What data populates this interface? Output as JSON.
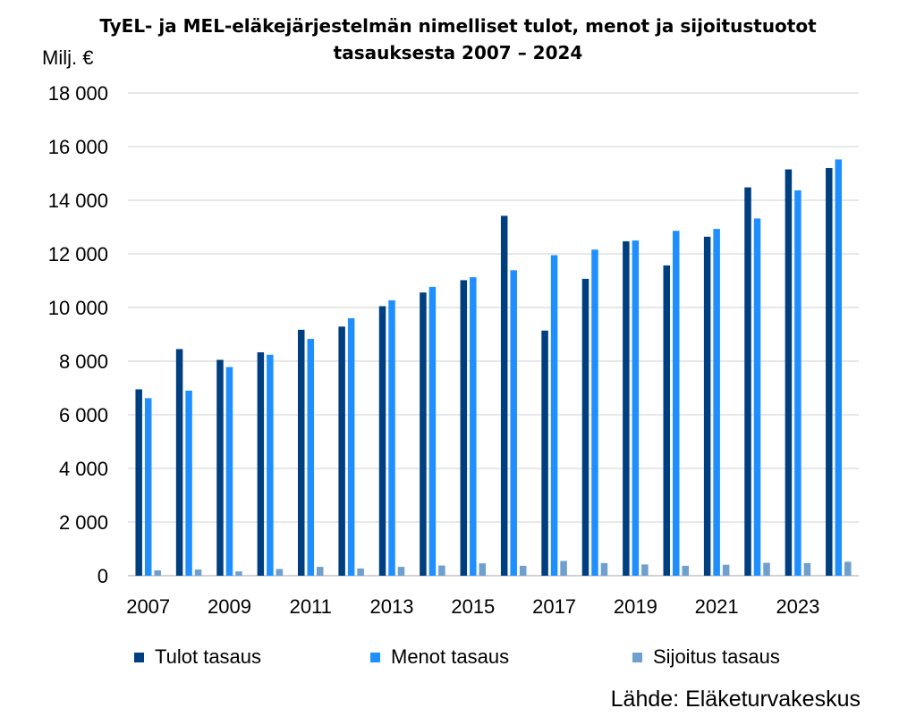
{
  "chart_data": {
    "type": "bar",
    "title": "TyEL- ja MEL-eläkejärjestelmän nimelliset tulot, menot ja sijoitustuotot",
    "subtitle": "tasauksesta 2007 – 2024",
    "ylabel": "Milj. €",
    "xlabel": "",
    "ylim": [
      0,
      18000
    ],
    "yticks": [
      "0",
      "2 000",
      "4 000",
      "6 000",
      "8 000",
      "10 000",
      "12 000",
      "14 000",
      "16 000",
      "18 000"
    ],
    "grid": true,
    "legend_position": "bottom",
    "categories": [
      "2007",
      "2008",
      "2009",
      "2010",
      "2011",
      "2012",
      "2013",
      "2014",
      "2015",
      "2016",
      "2017",
      "2018",
      "2019",
      "2020",
      "2021",
      "2022",
      "2023",
      "2024"
    ],
    "xtick_labels": [
      "2007",
      "2009",
      "2011",
      "2013",
      "2015",
      "2017",
      "2019",
      "2021",
      "2023"
    ],
    "series": [
      {
        "name": "Tulot tasaus",
        "color": "#003f7f",
        "values": [
          6950,
          8450,
          8050,
          8330,
          9170,
          9290,
          10050,
          10560,
          11020,
          13420,
          9140,
          11070,
          12470,
          11570,
          12640,
          14480,
          15150,
          15200
        ]
      },
      {
        "name": "Menot tasaus",
        "color": "#1f8fff",
        "values": [
          6620,
          6900,
          7780,
          8240,
          8830,
          9600,
          10270,
          10770,
          11130,
          11390,
          11950,
          12160,
          12500,
          12860,
          12930,
          13320,
          14370,
          15520
        ]
      },
      {
        "name": "Sijoitus tasaus",
        "color": "#6f9fcf",
        "values": [
          200,
          230,
          160,
          250,
          330,
          270,
          330,
          380,
          460,
          370,
          550,
          470,
          420,
          370,
          410,
          480,
          470,
          520
        ]
      }
    ],
    "source": "Lähde: Eläketurvakeskus"
  }
}
